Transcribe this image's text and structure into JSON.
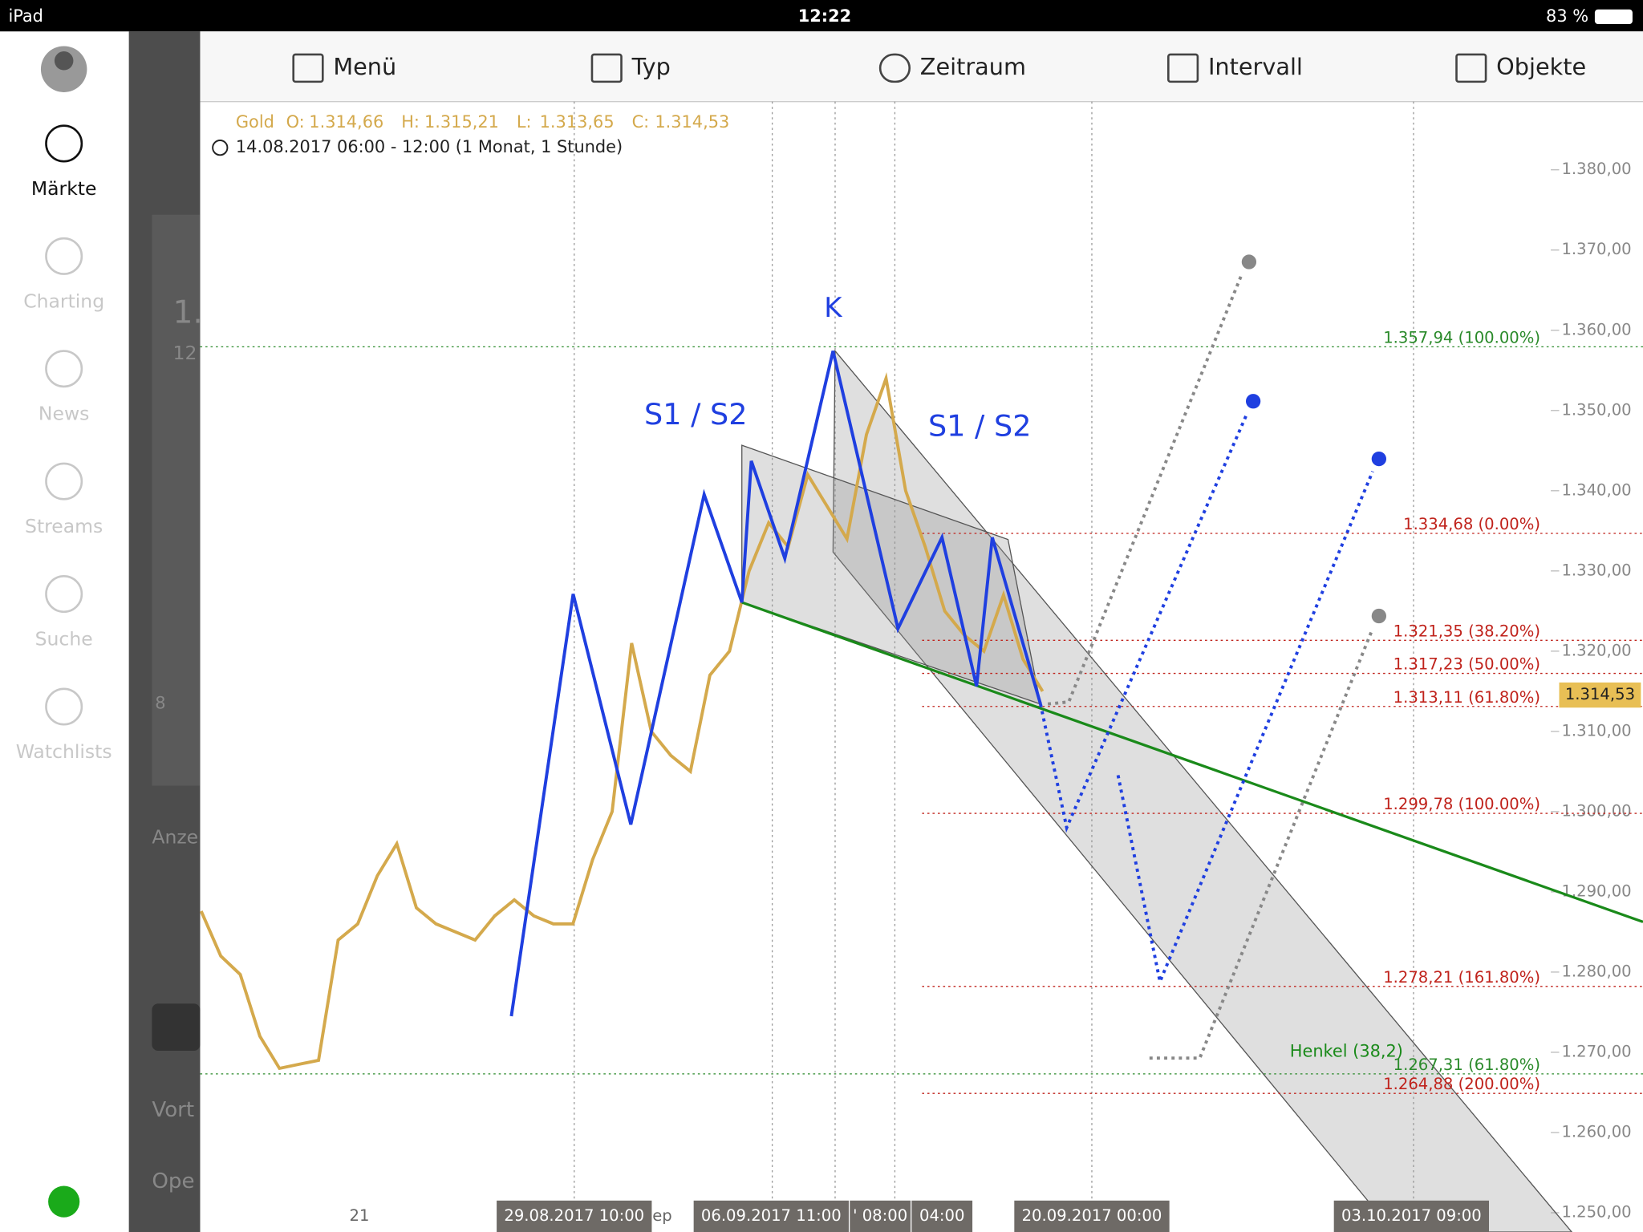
{
  "status_bar": {
    "device": "iPad",
    "time": "12:22",
    "battery": "83 %"
  },
  "sidebar": [
    {
      "label": "Märkte",
      "active": true
    },
    {
      "label": "Charting",
      "active": false
    },
    {
      "label": "News",
      "active": false
    },
    {
      "label": "Streams",
      "active": false
    },
    {
      "label": "Suche",
      "active": false
    },
    {
      "label": "Watchlists",
      "active": false
    }
  ],
  "toolbar": [
    "Menü",
    "Typ",
    "Zeitraum",
    "Intervall",
    "Objekte"
  ],
  "background_fragments": [
    "1.",
    "12",
    "8",
    "Anze",
    "Vort",
    "Ope"
  ],
  "chart_data": {
    "type": "line",
    "info": [
      {
        "label": "O:",
        "value": "1.314,66"
      },
      {
        "label": "H:",
        "value": "1.315,21"
      },
      {
        "label": "L:",
        "value": "1.313,65"
      },
      {
        "label": "C:",
        "value": "1.314,53"
      }
    ],
    "subtitle": "14.08.2017 06:00 - 12:00   (1 Monat, 1 Stunde)",
    "series": [
      {
        "name": "Gold",
        "color": "#d4a94c",
        "values": [
          1287.6,
          1282,
          1279.7,
          1272,
          1268,
          1268.5,
          1269,
          1284,
          1286,
          1292,
          1296,
          1288,
          1286,
          1285,
          1284,
          1287,
          1289,
          1287,
          1286,
          1286,
          1294,
          1300,
          1321,
          1310,
          1307,
          1305,
          1317,
          1320,
          1330,
          1336,
          1333,
          1342,
          1338,
          1334,
          1347,
          1354,
          1340,
          1333,
          1325,
          1322,
          1320,
          1327,
          1319,
          1315
        ]
      }
    ],
    "ylim": [
      1247.6,
      1388.5
    ],
    "yticks": [
      {
        "value": 1250,
        "label": "1.250,00"
      },
      {
        "value": 1260,
        "label": "1.260,00"
      },
      {
        "value": 1270,
        "label": "1.270,00"
      },
      {
        "value": 1280,
        "label": "1.280,00"
      },
      {
        "value": 1290,
        "label": "1.290,00"
      },
      {
        "value": 1300,
        "label": "1.300,00"
      },
      {
        "value": 1310,
        "label": "1.310,00"
      },
      {
        "value": 1320,
        "label": "1.320,00"
      },
      {
        "value": 1330,
        "label": "1.330,00"
      },
      {
        "value": 1340,
        "label": "1.340,00"
      },
      {
        "value": 1350,
        "label": "1.350,00"
      },
      {
        "value": 1360,
        "label": "1.360,00"
      },
      {
        "value": 1370,
        "label": "1.370,00"
      },
      {
        "value": 1380,
        "label": "1.380,00"
      }
    ],
    "levels": [
      {
        "value": 1357.94,
        "label": "1.357,94 (100.00%)",
        "color": "#2a8a2a"
      },
      {
        "value": 1334.68,
        "label": "1.334,68 (0.00%)",
        "color": "#c0231c"
      },
      {
        "value": 1321.35,
        "label": "1.321,35 (38.20%)",
        "color": "#c0231c"
      },
      {
        "value": 1317.23,
        "label": "1.317,23 (50.00%)",
        "color": "#c0231c"
      },
      {
        "value": 1313.11,
        "label": "1.313,11 (61.80%)",
        "color": "#c0231c"
      },
      {
        "value": 1299.78,
        "label": "1.299,78 (100.00%)",
        "color": "#c0231c"
      },
      {
        "value": 1278.21,
        "label": "1.278,21 (161.80%)",
        "color": "#c0231c"
      },
      {
        "value": 1267.31,
        "label": "1.267,31 (61.80%)",
        "color": "#2a8a2a"
      },
      {
        "value": 1264.88,
        "label": "1.264,88 (200.00%)",
        "color": "#c0231c"
      }
    ],
    "last_price": {
      "value": 1314.53,
      "label": "1.314,53"
    },
    "x_labels": [
      "21",
      "29.08.2017 10:00",
      "ep",
      "06.09.2017 11:00",
      "' 08:00",
      "04:00",
      "20.09.2017 00:00",
      "03.10.2017 09:00"
    ],
    "annotations": [
      "K",
      "S1 / S2",
      "S1 / S2",
      "Henkel (38,2)"
    ]
  }
}
